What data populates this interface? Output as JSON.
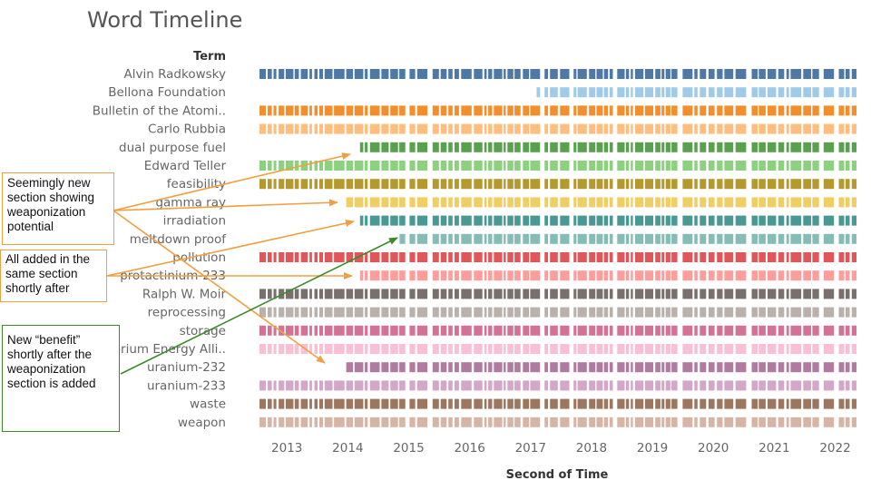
{
  "title": "Word Timeline",
  "chart_data": {
    "type": "timeline",
    "ylabel": "Term",
    "xlabel": "Second of Time",
    "x_ticks": [
      "2013",
      "2014",
      "2015",
      "2016",
      "2017",
      "2018",
      "2019",
      "2020",
      "2021",
      "2022"
    ],
    "xlim": [
      2012.55,
      2022.35
    ],
    "series": [
      {
        "name": "Alvin Radkowsky",
        "start": 2012.55,
        "color": "#4e79a7"
      },
      {
        "name": "Bellona Foundation",
        "start": 2017.1,
        "color": "#a0cbe8"
      },
      {
        "name": "Bulletin of the Atomi..",
        "start": 2012.55,
        "color": "#f28e2b"
      },
      {
        "name": "Carlo Rubbia",
        "start": 2012.55,
        "color": "#ffbe7d"
      },
      {
        "name": "dual purpose fuel",
        "start": 2014.2,
        "color": "#59a14f"
      },
      {
        "name": "Edward Teller",
        "start": 2012.55,
        "color": "#8cd17d"
      },
      {
        "name": "feasibility",
        "start": 2012.55,
        "color": "#b6992d"
      },
      {
        "name": "gamma ray",
        "start": 2013.95,
        "color": "#f1ce63"
      },
      {
        "name": "irradiation",
        "start": 2014.2,
        "color": "#499894"
      },
      {
        "name": "meltdown proof",
        "start": 2014.85,
        "color": "#86bcb6"
      },
      {
        "name": "pollution",
        "start": 2012.55,
        "color": "#e15759"
      },
      {
        "name": "protactinium-233",
        "start": 2014.2,
        "color": "#ff9d9a"
      },
      {
        "name": "Ralph W. Moir",
        "start": 2012.55,
        "color": "#79706e"
      },
      {
        "name": "reprocessing",
        "start": 2012.55,
        "color": "#bab0ac"
      },
      {
        "name": "storage",
        "start": 2012.55,
        "color": "#d37295"
      },
      {
        "name": "Thorium Energy Alli..",
        "start": 2012.55,
        "color": "#fabfd2"
      },
      {
        "name": "uranium-232",
        "start": 2013.95,
        "color": "#b07aa1"
      },
      {
        "name": "uranium-233",
        "start": 2012.55,
        "color": "#d4a6c8"
      },
      {
        "name": "waste",
        "start": 2012.55,
        "color": "#9d7660"
      },
      {
        "name": "weapon",
        "start": 2012.55,
        "color": "#d7b5a6"
      }
    ]
  },
  "annotations": {
    "new_section": "Seemingly new section showing weaponization potential",
    "same_section": "All added in the same section shortly after",
    "benefit": "New “benefit” shortly after the weaponization section is added"
  }
}
